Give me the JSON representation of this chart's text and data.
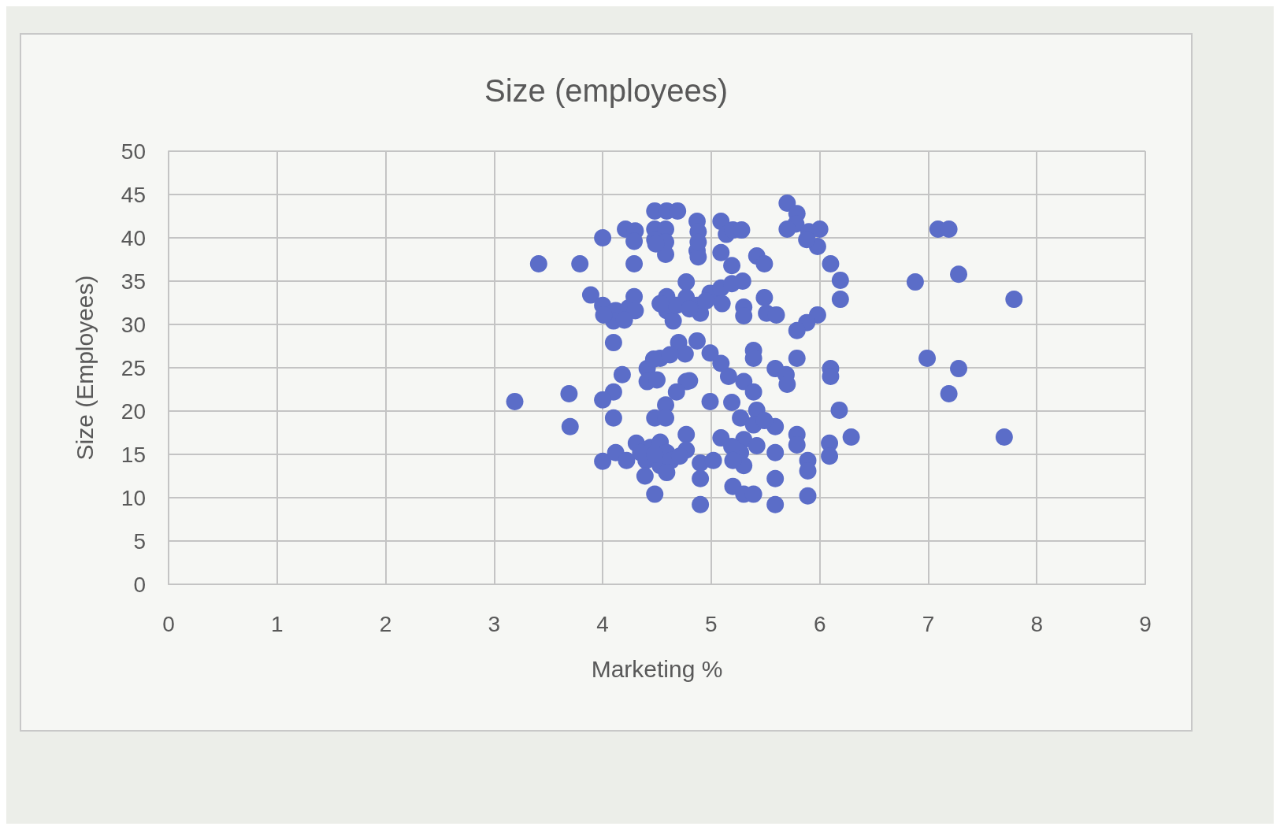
{
  "chart_data": {
    "type": "scatter",
    "title": "Size (employees)",
    "xlabel": "Marketing %",
    "ylabel": "Size (Employees)",
    "x": [
      3.41,
      3.79,
      4.29,
      4.0,
      3.19,
      3.69,
      3.7,
      4.21,
      4.3,
      4.29,
      4.48,
      4.59,
      4.69,
      4.48,
      4.58,
      4.48,
      4.58,
      4.58,
      4.87,
      4.88,
      4.87,
      4.88,
      5.09,
      5.14,
      5.09,
      5.19,
      5.2,
      5.28,
      5.7,
      5.79,
      5.78,
      5.7,
      5.9,
      6.0,
      5.98,
      5.88,
      5.42,
      5.49,
      6.1,
      6.19,
      6.19,
      3.89,
      4.0,
      4.12,
      4.24,
      4.29,
      4.3,
      4.1,
      4.1,
      4.59,
      4.59,
      4.65,
      4.77,
      4.77,
      4.87,
      4.9,
      4.99,
      5.09,
      5.19,
      5.29,
      5.1,
      5.3,
      5.3,
      5.49,
      5.51,
      5.6,
      5.98,
      5.88,
      5.79,
      4.41,
      4.41,
      4.53,
      4.7,
      4.87,
      4.99,
      5.09,
      5.16,
      5.3,
      5.39,
      5.19,
      4.99,
      5.39,
      5.39,
      5.79,
      5.59,
      5.69,
      5.7,
      6.1,
      6.1,
      4.18,
      4.1,
      4.0,
      4.1,
      4.77,
      4.68,
      4.58,
      4.48,
      4.58,
      5.27,
      5.42,
      5.59,
      5.3,
      5.42,
      5.27,
      5.3,
      5.2,
      5.3,
      5.39,
      5.59,
      5.59,
      5.59,
      5.79,
      5.79,
      5.89,
      5.89,
      5.89,
      6.09,
      6.09,
      6.18,
      6.29,
      5.09,
      5.19,
      4.0,
      4.12,
      4.22,
      4.31,
      4.4,
      4.44,
      4.53,
      4.59,
      4.53,
      4.63,
      4.77,
      4.77,
      4.39,
      4.48,
      4.9,
      4.9,
      4.9,
      5.02,
      6.88,
      7.28,
      7.09,
      7.19,
      7.79,
      6.99,
      7.28,
      7.19,
      7.7,
      4.88,
      4.49,
      4.01,
      4.2,
      4.68,
      4.95,
      4.8,
      4.53,
      4.47,
      4.76,
      4.62,
      4.5,
      4.8,
      5.39,
      5.49,
      4.59,
      4.71,
      4.35,
      4.48,
      5.2
    ],
    "values": [
      37.0,
      37.0,
      37.0,
      40.0,
      21.1,
      22.0,
      18.2,
      41.0,
      40.8,
      39.6,
      43.1,
      43.1,
      43.1,
      41.0,
      41.0,
      39.8,
      39.5,
      38.1,
      41.9,
      40.7,
      38.5,
      37.8,
      41.9,
      40.4,
      38.3,
      36.8,
      40.9,
      40.9,
      44.0,
      42.8,
      41.6,
      41.0,
      40.7,
      41.0,
      39.0,
      39.8,
      37.9,
      37.0,
      37.0,
      35.1,
      32.9,
      33.4,
      32.2,
      31.6,
      31.9,
      33.2,
      31.6,
      30.4,
      27.9,
      33.2,
      31.6,
      30.4,
      34.9,
      33.1,
      32.2,
      31.3,
      33.6,
      34.2,
      34.7,
      35.0,
      32.4,
      32.0,
      31.0,
      33.1,
      31.3,
      31.1,
      31.1,
      30.2,
      29.3,
      24.9,
      23.4,
      26.1,
      27.9,
      28.1,
      26.7,
      25.5,
      24.0,
      23.4,
      22.2,
      21.0,
      21.1,
      27.0,
      26.1,
      26.1,
      24.9,
      24.2,
      23.1,
      24.9,
      24.0,
      24.2,
      22.2,
      21.3,
      19.2,
      23.4,
      22.2,
      20.7,
      19.2,
      19.2,
      19.2,
      20.1,
      18.2,
      16.7,
      16.0,
      15.2,
      13.7,
      11.3,
      10.4,
      10.4,
      15.2,
      12.2,
      9.2,
      17.3,
      16.1,
      14.3,
      13.1,
      10.2,
      16.3,
      14.8,
      20.1,
      17.0,
      16.9,
      15.9,
      14.2,
      15.2,
      14.3,
      16.3,
      14.3,
      15.8,
      16.4,
      15.2,
      13.7,
      14.3,
      17.3,
      15.5,
      12.5,
      10.4,
      14.0,
      12.2,
      9.2,
      14.3,
      34.9,
      35.8,
      41.0,
      41.0,
      32.9,
      26.1,
      24.9,
      22.0,
      17.0,
      39.5,
      39.3,
      31.1,
      30.5,
      32.2,
      32.7,
      31.8,
      32.4,
      26.0,
      26.6,
      26.5,
      23.6,
      23.5,
      18.4,
      18.9,
      12.9,
      14.8,
      15.2,
      15.0,
      14.3
    ],
    "color": "#5b6dc8",
    "marker": "circle",
    "grid": true,
    "xlim": [
      0,
      9
    ],
    "xticks": [
      0,
      1,
      2,
      3,
      4,
      5,
      6,
      7,
      8,
      9
    ],
    "ylim": [
      0,
      50
    ],
    "yticks": [
      0,
      5,
      10,
      15,
      20,
      25,
      30,
      35,
      40,
      45,
      50
    ]
  }
}
